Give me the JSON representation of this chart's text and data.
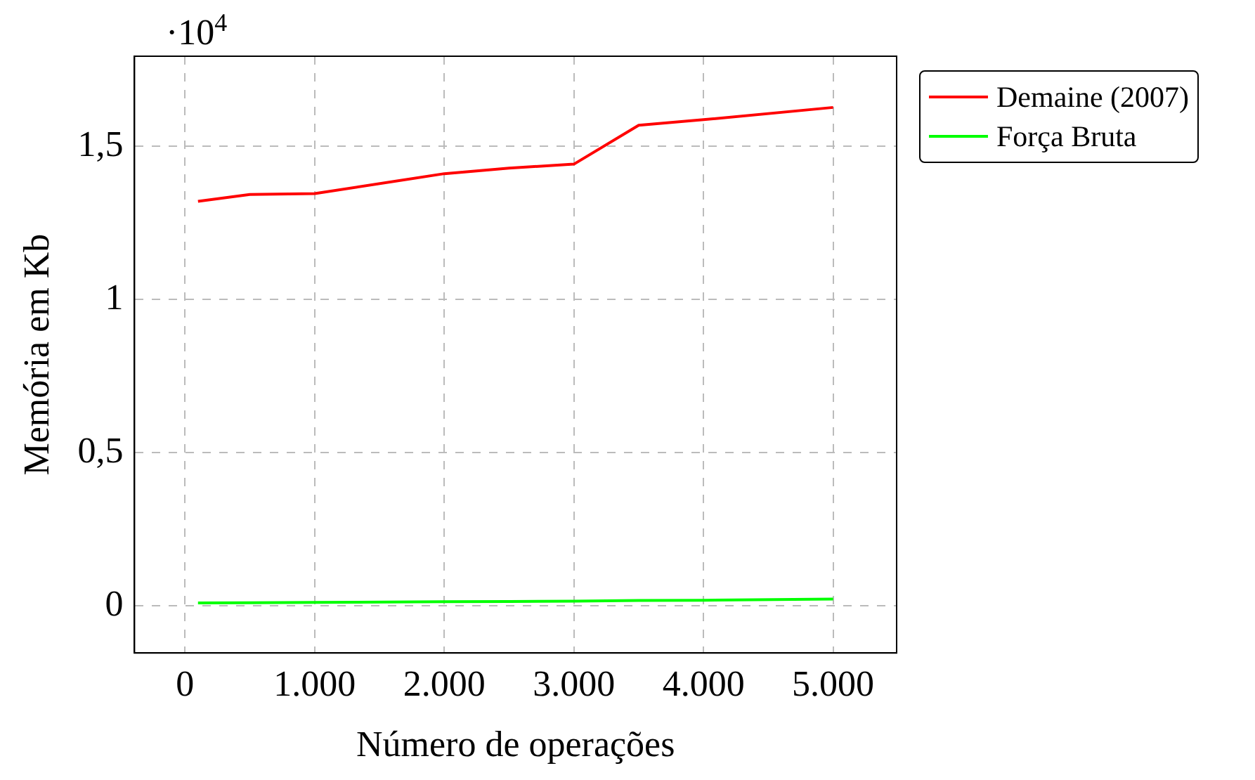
{
  "chart_data": {
    "type": "line",
    "xlabel": "Número de operações",
    "ylabel": "Memória em Kb",
    "annotations": [
      "·10$^{4}$"
    ],
    "x": [
      100,
      500,
      1000,
      2000,
      2500,
      3000,
      3500,
      4000,
      5000
    ],
    "series": [
      {
        "name": "Demaine (2007)",
        "color": "#ff0000",
        "values": [
          1.32,
          1.342,
          1.345,
          1.41,
          1.428,
          1.441,
          1.568,
          1.586,
          1.626
        ]
      },
      {
        "name": "Força Bruta",
        "color": "#00ff00",
        "values": [
          0.01,
          0.011,
          0.012,
          0.014,
          0.015,
          0.016,
          0.018,
          0.019,
          0.023
        ]
      }
    ],
    "xlim": [
      -390,
      5490
    ],
    "ylim": [
      -0.153,
      1.793
    ],
    "xticks": [
      {
        "value": 0,
        "label": "0"
      },
      {
        "value": 1000,
        "label": "1.000"
      },
      {
        "value": 2000,
        "label": "2.000"
      },
      {
        "value": 3000,
        "label": "3.000"
      },
      {
        "value": 4000,
        "label": "4.000"
      },
      {
        "value": 5000,
        "label": "5.000"
      }
    ],
    "yticks": [
      {
        "value": 0,
        "label": "0"
      },
      {
        "value": 0.5,
        "label": "0,5"
      },
      {
        "value": 1,
        "label": "1"
      },
      {
        "value": 1.5,
        "label": "1,5"
      }
    ],
    "grid": true,
    "legend": "top right",
    "marker": "none",
    "line_style": "solid"
  }
}
